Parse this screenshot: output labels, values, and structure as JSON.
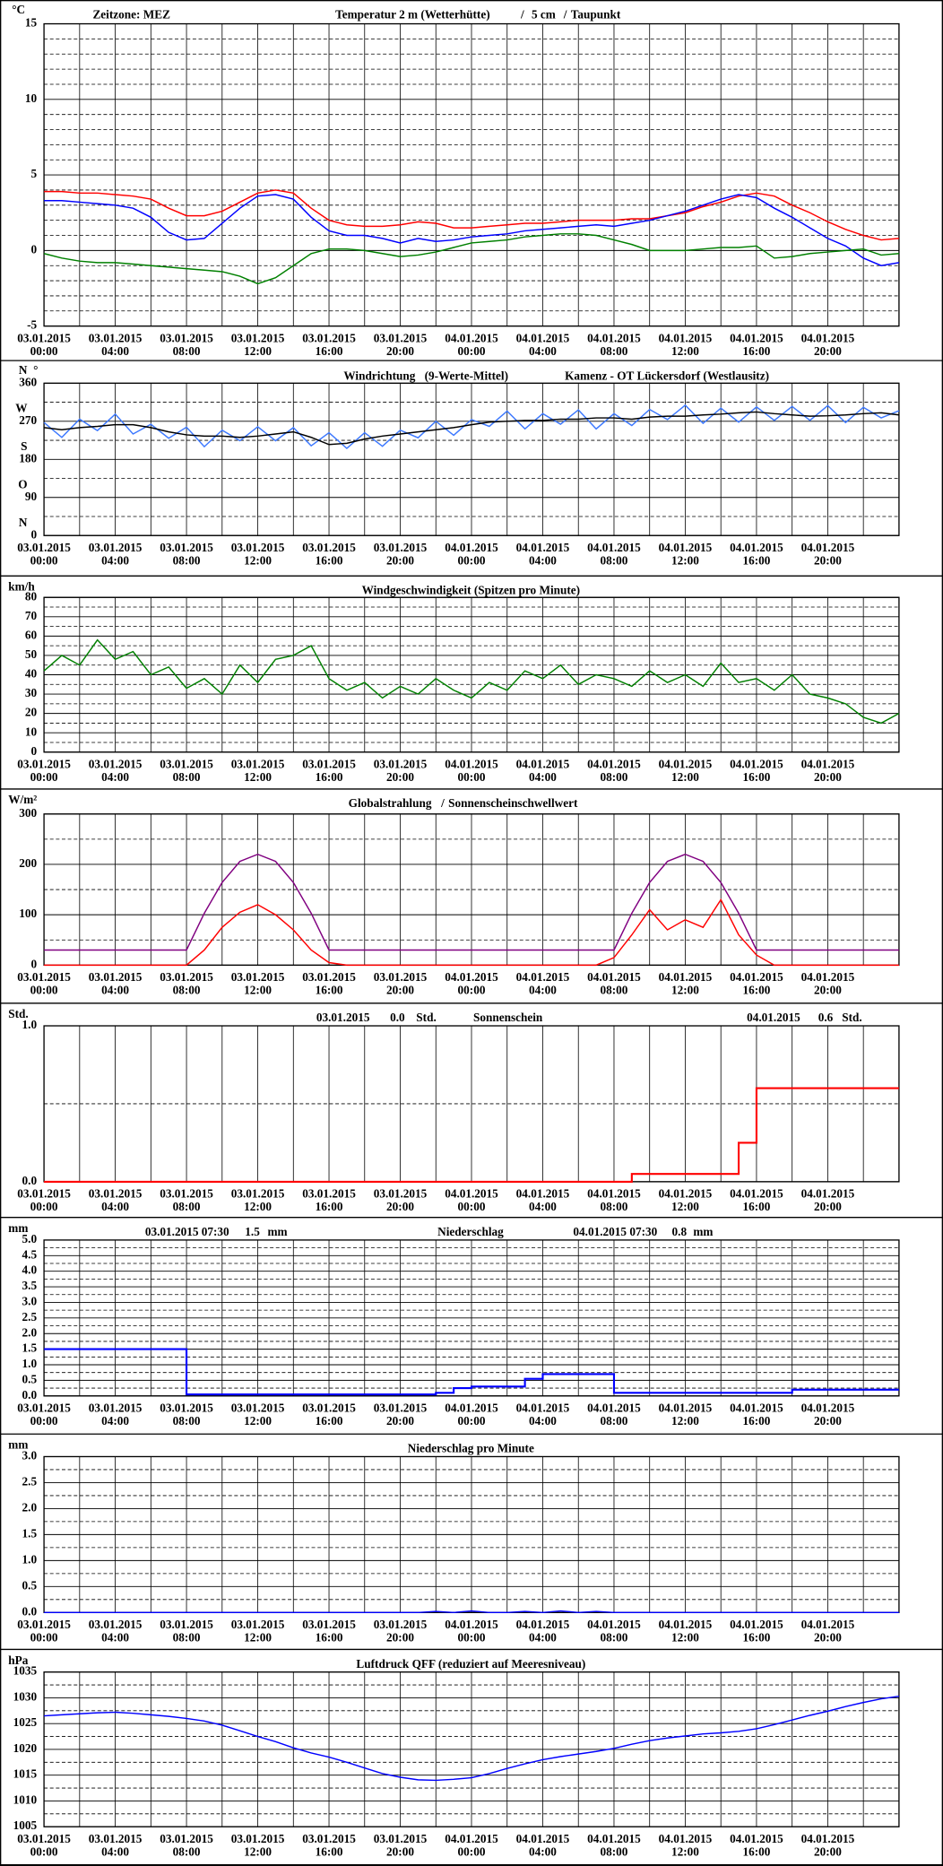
{
  "time_axis": {
    "xlim": [
      0,
      48
    ],
    "grid_step": 2,
    "x": [
      0,
      1,
      2,
      3,
      4,
      5,
      6,
      7,
      8,
      9,
      10,
      11,
      12,
      13,
      14,
      15,
      16,
      17,
      18,
      19,
      20,
      21,
      22,
      23,
      24,
      25,
      26,
      27,
      28,
      29,
      30,
      31,
      32,
      33,
      34,
      35,
      36,
      37,
      38,
      39,
      40,
      41,
      42,
      43,
      44,
      45,
      46,
      47,
      48
    ],
    "xticks": [
      {
        "value": 0,
        "date": "03.01.2015",
        "time": "00:00"
      },
      {
        "value": 4,
        "date": "03.01.2015",
        "time": "04:00"
      },
      {
        "value": 8,
        "date": "03.01.2015",
        "time": "08:00"
      },
      {
        "value": 12,
        "date": "03.01.2015",
        "time": "12:00"
      },
      {
        "value": 16,
        "date": "03.01.2015",
        "time": "16:00"
      },
      {
        "value": 20,
        "date": "03.01.2015",
        "time": "20:00"
      },
      {
        "value": 24,
        "date": "04.01.2015",
        "time": "00:00"
      },
      {
        "value": 28,
        "date": "04.01.2015",
        "time": "04:00"
      },
      {
        "value": 32,
        "date": "04.01.2015",
        "time": "08:00"
      },
      {
        "value": 36,
        "date": "04.01.2015",
        "time": "12:00"
      },
      {
        "value": 40,
        "date": "04.01.2015",
        "time": "16:00"
      },
      {
        "value": 44,
        "date": "04.01.2015",
        "time": "20:00"
      }
    ]
  },
  "chart_data": [
    {
      "type": "line",
      "unit": "°C",
      "timezone": "Zeitzone: MEZ",
      "separator": "/",
      "ylim": [
        -5,
        15
      ],
      "yticks": [
        -5,
        0,
        5,
        10,
        15
      ],
      "minor_ystep": 1,
      "series": [
        {
          "name": "Temperatur 2 m (Wetterhütte)",
          "color": "#ff0000",
          "values": [
            3.9,
            3.9,
            3.8,
            3.8,
            3.7,
            3.6,
            3.4,
            2.8,
            2.3,
            2.3,
            2.6,
            3.2,
            3.8,
            4.0,
            3.8,
            2.8,
            2.0,
            1.7,
            1.6,
            1.6,
            1.7,
            1.9,
            1.8,
            1.5,
            1.5,
            1.6,
            1.7,
            1.8,
            1.8,
            1.9,
            2.0,
            2.0,
            2.0,
            2.1,
            2.1,
            2.3,
            2.5,
            2.9,
            3.2,
            3.6,
            3.8,
            3.6,
            3.0,
            2.5,
            1.9,
            1.4,
            1.0,
            0.7,
            0.8
          ]
        },
        {
          "name": "5 cm",
          "color": "#0000ff",
          "values": [
            3.3,
            3.3,
            3.2,
            3.1,
            3.0,
            2.8,
            2.2,
            1.2,
            0.7,
            0.8,
            1.8,
            2.8,
            3.6,
            3.7,
            3.4,
            2.2,
            1.3,
            1.0,
            1.0,
            0.8,
            0.5,
            0.8,
            0.6,
            0.7,
            0.9,
            1.0,
            1.1,
            1.3,
            1.4,
            1.5,
            1.6,
            1.7,
            1.6,
            1.8,
            2.0,
            2.3,
            2.6,
            3.0,
            3.4,
            3.7,
            3.5,
            2.8,
            2.2,
            1.5,
            0.8,
            0.3,
            -0.5,
            -1.0,
            -0.8
          ]
        },
        {
          "name": "Taupunkt",
          "color": "#008000",
          "values": [
            -0.2,
            -0.5,
            -0.7,
            -0.8,
            -0.8,
            -0.9,
            -1.0,
            -1.1,
            -1.2,
            -1.3,
            -1.4,
            -1.7,
            -2.2,
            -1.8,
            -1.0,
            -0.2,
            0.1,
            0.1,
            0.0,
            -0.2,
            -0.4,
            -0.3,
            -0.1,
            0.2,
            0.5,
            0.6,
            0.7,
            0.9,
            1.0,
            1.1,
            1.1,
            1.0,
            0.7,
            0.4,
            0.0,
            0.0,
            0.0,
            0.1,
            0.2,
            0.2,
            0.3,
            -0.5,
            -0.4,
            -0.2,
            -0.1,
            0.0,
            0.1,
            -0.3,
            -0.2
          ]
        }
      ]
    },
    {
      "type": "line",
      "unit": "°",
      "location": "Kamenz - OT Lückersdorf (Westlausitz)",
      "ylim": [
        0,
        360
      ],
      "yticks": [
        0,
        90,
        180,
        270,
        360
      ],
      "ytick_directions": [
        "N",
        "O",
        "S",
        "W",
        "N"
      ],
      "minor_ystep": 45,
      "series": [
        {
          "name": "Windrichtung",
          "color": "#3c78ff",
          "values": [
            267,
            232,
            275,
            248,
            287,
            240,
            263,
            230,
            256,
            210,
            249,
            224,
            257,
            224,
            255,
            212,
            243,
            206,
            243,
            211,
            249,
            231,
            270,
            237,
            274,
            258,
            294,
            252,
            288,
            263,
            297,
            252,
            288,
            260,
            298,
            274,
            308,
            265,
            301,
            268,
            304,
            272,
            305,
            272,
            307,
            267,
            303,
            278,
            295
          ]
        },
        {
          "name": "(9-Werte-Mittel)",
          "color": "#000000",
          "values": [
            255,
            250,
            255,
            258,
            262,
            262,
            255,
            245,
            238,
            235,
            235,
            232,
            235,
            240,
            245,
            232,
            215,
            218,
            228,
            235,
            240,
            245,
            250,
            255,
            262,
            268,
            270,
            272,
            272,
            275,
            275,
            278,
            278,
            275,
            280,
            282,
            282,
            285,
            287,
            290,
            292,
            288,
            285,
            282,
            283,
            285,
            288,
            290,
            285
          ]
        }
      ]
    },
    {
      "type": "line",
      "unit": "km/h",
      "title": "Windgeschwindigkeit (Spitzen pro Minute)",
      "ylim": [
        0,
        80
      ],
      "yticks": [
        0,
        10,
        20,
        30,
        40,
        50,
        60,
        70,
        80
      ],
      "minor_ystep": 5,
      "series": [
        {
          "color": "#008000",
          "values": [
            42,
            50,
            45,
            58,
            48,
            52,
            40,
            44,
            33,
            38,
            30,
            45,
            36,
            48,
            50,
            55,
            38,
            32,
            36,
            28,
            34,
            30,
            38,
            32,
            28,
            36,
            32,
            42,
            38,
            45,
            35,
            40,
            38,
            34,
            42,
            36,
            40,
            34,
            46,
            36,
            38,
            32,
            40,
            30,
            28,
            25,
            18,
            15,
            20
          ]
        }
      ]
    },
    {
      "type": "line",
      "unit": "W/m²",
      "separator": "/",
      "ylim": [
        0,
        300
      ],
      "yticks": [
        0,
        100,
        200,
        300
      ],
      "minor_ystep": 50,
      "series": [
        {
          "name": "Sonnenscheinschwellwert",
          "color": "#800080",
          "values": [
            30,
            30,
            30,
            30,
            30,
            30,
            30,
            30,
            30,
            103,
            164,
            206,
            220,
            206,
            164,
            103,
            30,
            30,
            30,
            30,
            30,
            30,
            30,
            30,
            30,
            30,
            30,
            30,
            30,
            30,
            30,
            30,
            30,
            103,
            164,
            206,
            220,
            206,
            164,
            103,
            30,
            30,
            30,
            30,
            30,
            30,
            30,
            30,
            30
          ]
        },
        {
          "name": "Globalstrahlung",
          "color": "#ff0000",
          "values": [
            0,
            0,
            0,
            0,
            0,
            0,
            0,
            0,
            0,
            30,
            75,
            105,
            120,
            100,
            70,
            30,
            5,
            0,
            0,
            0,
            0,
            0,
            0,
            0,
            0,
            0,
            0,
            0,
            0,
            0,
            0,
            0,
            15,
            60,
            110,
            70,
            90,
            75,
            130,
            60,
            20,
            0,
            0,
            0,
            0,
            0,
            0,
            0,
            0
          ]
        }
      ]
    },
    {
      "type": "line",
      "step": true,
      "unit": "Std.",
      "title": "Sonnenschein",
      "daily_totals": [
        {
          "date": "03.01.2015",
          "value": 0,
          "label": "0.0"
        },
        {
          "date": "04.01.2015",
          "value": 0.6,
          "label": "0.6"
        }
      ],
      "ylim": [
        0,
        1
      ],
      "yticks": [
        {
          "value": 0,
          "label": "0.0"
        },
        {
          "value": 1,
          "label": "1.0"
        }
      ],
      "minor_ystep": 0.5,
      "series": [
        {
          "color": "#ff0000",
          "values": [
            0,
            0,
            0,
            0,
            0,
            0,
            0,
            0,
            0,
            0,
            0,
            0,
            0,
            0,
            0,
            0,
            0,
            0,
            0,
            0,
            0,
            0,
            0,
            0,
            0,
            0,
            0,
            0,
            0,
            0,
            0,
            0,
            0,
            0.05,
            0.05,
            0.05,
            0.05,
            0.05,
            0.05,
            0.25,
            0.6,
            0.6,
            0.6,
            0.6,
            0.6,
            0.6,
            0.6,
            0.6,
            0.6
          ]
        }
      ]
    },
    {
      "type": "line",
      "step": true,
      "unit": "mm",
      "title": "Niederschlag",
      "daily_totals": [
        {
          "date": "03.01.2015 07:30",
          "value": 1.5,
          "label": "1.5"
        },
        {
          "date": "04.01.2015 07:30",
          "value": 0.8,
          "label": "0.8"
        }
      ],
      "ylim": [
        0,
        5
      ],
      "yticks": [
        {
          "value": 0,
          "label": "0.0"
        },
        {
          "value": 0.5,
          "label": "0.5"
        },
        {
          "value": 1,
          "label": "1.0"
        },
        {
          "value": 1.5,
          "label": "1.5"
        },
        {
          "value": 2,
          "label": "2.0"
        },
        {
          "value": 2.5,
          "label": "2.5"
        },
        {
          "value": 3,
          "label": "3.0"
        },
        {
          "value": 3.5,
          "label": "3.5"
        },
        {
          "value": 4,
          "label": "4.0"
        },
        {
          "value": 4.5,
          "label": "4.5"
        },
        {
          "value": 5,
          "label": "5.0"
        }
      ],
      "minor_ystep": 0.25,
      "series": [
        {
          "color": "#0000ff",
          "values": [
            1.5,
            1.5,
            1.5,
            1.5,
            1.5,
            1.5,
            1.5,
            1.5,
            0.05,
            0.05,
            0.05,
            0.05,
            0.05,
            0.05,
            0.05,
            0.05,
            0.05,
            0.05,
            0.05,
            0.05,
            0.05,
            0.05,
            0.1,
            0.25,
            0.3,
            0.3,
            0.3,
            0.55,
            0.7,
            0.7,
            0.7,
            0.7,
            0.1,
            0.1,
            0.1,
            0.1,
            0.1,
            0.1,
            0.1,
            0.1,
            0.1,
            0.1,
            0.2,
            0.2,
            0.2,
            0.2,
            0.2,
            0.2,
            0.2
          ]
        }
      ]
    },
    {
      "type": "line",
      "unit": "mm",
      "title": "Niederschlag pro Minute",
      "ylim": [
        0,
        3
      ],
      "yticks": [
        {
          "value": 0,
          "label": "0.0"
        },
        {
          "value": 0.5,
          "label": "0.5"
        },
        {
          "value": 1,
          "label": "1.0"
        },
        {
          "value": 1.5,
          "label": "1.5"
        },
        {
          "value": 2,
          "label": "2.0"
        },
        {
          "value": 2.5,
          "label": "2.5"
        },
        {
          "value": 3,
          "label": "3.0"
        }
      ],
      "minor_ystep": 0.25,
      "series": [
        {
          "color": "#0000ff",
          "values": [
            0,
            0,
            0,
            0,
            0,
            0,
            0,
            0,
            0,
            0,
            0,
            0,
            0,
            0,
            0,
            0,
            0,
            0,
            0,
            0,
            0,
            0,
            0.02,
            0,
            0.03,
            0,
            0,
            0.02,
            0,
            0.03,
            0,
            0.02,
            0,
            0,
            0,
            0,
            0,
            0,
            0,
            0,
            0,
            0,
            0,
            0,
            0,
            0,
            0,
            0,
            0
          ]
        }
      ]
    },
    {
      "type": "line",
      "unit": "hPa",
      "title": "Luftdruck QFF (reduziert auf Meeresniveau)",
      "ylim": [
        1005,
        1035
      ],
      "yticks": [
        1005,
        1010,
        1015,
        1020,
        1025,
        1030,
        1035
      ],
      "minor_ystep": 2.5,
      "series": [
        {
          "color": "#0000ff",
          "values": [
            1026.5,
            1026.7,
            1026.9,
            1027.1,
            1027.2,
            1027,
            1026.7,
            1026.4,
            1026,
            1025.5,
            1024.7,
            1023.6,
            1022.5,
            1021.5,
            1020.3,
            1019.3,
            1018.5,
            1017.5,
            1016.4,
            1015.3,
            1014.6,
            1014.1,
            1014,
            1014.2,
            1014.5,
            1015.3,
            1016.3,
            1017.2,
            1018,
            1018.6,
            1019.1,
            1019.6,
            1020.2,
            1021,
            1021.7,
            1022.2,
            1022.6,
            1023,
            1023.2,
            1023.5,
            1024,
            1024.8,
            1025.7,
            1026.6,
            1027.4,
            1028.3,
            1029.1,
            1029.8,
            1030.3
          ]
        }
      ]
    }
  ]
}
